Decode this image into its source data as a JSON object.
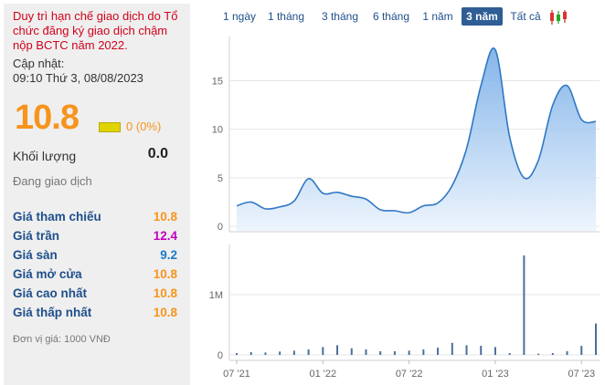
{
  "notice": "Duy trì hạn chế giao dịch do Tổ chức đăng ký giao dịch chậm nộp BCTC năm 2022.",
  "updated_label": "Cập nhật:",
  "updated_time": "09:10 Thứ 3, 08/08/2023",
  "price": "10.8",
  "change": "0 (0%)",
  "volume": {
    "label": "Khối lượng",
    "value": "0.0"
  },
  "status": "Đang giao dịch",
  "stats": [
    {
      "label": "Giá tham chiếu",
      "value": "10.8",
      "color": "#f7941d"
    },
    {
      "label": "Giá trần",
      "value": "12.4",
      "color": "#c000c0"
    },
    {
      "label": "Giá sàn",
      "value": "9.2",
      "color": "#1a7ac9"
    },
    {
      "label": "Giá mở cửa",
      "value": "10.8",
      "color": "#f7941d"
    },
    {
      "label": "Giá cao nhất",
      "value": "10.8",
      "color": "#f7941d"
    },
    {
      "label": "Giá thấp nhất",
      "value": "10.8",
      "color": "#f7941d"
    }
  ],
  "unit_note": "Đơn vị giá: 1000 VNĐ",
  "tabs": [
    {
      "label": "1 ngày",
      "active": false
    },
    {
      "label": "1 tháng",
      "active": false
    },
    {
      "label": "3 tháng",
      "active": false
    },
    {
      "label": "6 tháng",
      "active": false
    },
    {
      "label": "1 năm",
      "active": false
    },
    {
      "label": "3 năm",
      "active": true
    },
    {
      "label": "Tất cả",
      "active": false
    }
  ],
  "tab_icon": "candlestick-icon",
  "chart_data": [
    {
      "type": "area",
      "title": "",
      "y_ticks": [
        "0",
        "5",
        "10",
        "15"
      ],
      "ylim": [
        0,
        19
      ],
      "x_ticks": [
        "07 '21",
        "01 '22",
        "07 '22",
        "01 '23",
        "07 '23"
      ],
      "xlim": [
        "2021-07",
        "2023-08"
      ],
      "grid": true,
      "series": [
        {
          "x": [
            "2021-07",
            "2021-08",
            "2021-09",
            "2021-10",
            "2021-11",
            "2021-12",
            "2022-01",
            "2022-02",
            "2022-03",
            "2022-04",
            "2022-05",
            "2022-06",
            "2022-07",
            "2022-08",
            "2022-09",
            "2022-10",
            "2022-11",
            "2022-12",
            "2023-01",
            "2023-02",
            "2023-03",
            "2023-04",
            "2023-05",
            "2023-06",
            "2023-07",
            "2023-08"
          ],
          "y": [
            2.1,
            2.5,
            1.8,
            2.0,
            2.6,
            4.9,
            3.4,
            3.5,
            3.1,
            2.8,
            1.7,
            1.6,
            1.4,
            2.1,
            2.4,
            4.2,
            8.0,
            14.5,
            18.2,
            9.2,
            5.0,
            6.8,
            12.5,
            14.5,
            11.0,
            10.8
          ]
        }
      ]
    },
    {
      "type": "bar",
      "title": "",
      "y_ticks": [
        "0",
        "1M"
      ],
      "ylim": [
        0,
        1800000
      ],
      "series": [
        {
          "x": [
            "2021-07",
            "2021-08",
            "2021-09",
            "2021-10",
            "2021-11",
            "2021-12",
            "2022-01",
            "2022-02",
            "2022-03",
            "2022-04",
            "2022-05",
            "2022-06",
            "2022-07",
            "2022-08",
            "2022-09",
            "2022-10",
            "2022-11",
            "2022-12",
            "2023-01",
            "2023-02",
            "2023-03",
            "2023-04",
            "2023-05",
            "2023-06",
            "2023-07",
            "2023-08"
          ],
          "y": [
            30000,
            45000,
            40000,
            55000,
            70000,
            90000,
            130000,
            160000,
            110000,
            90000,
            60000,
            60000,
            70000,
            90000,
            120000,
            200000,
            160000,
            150000,
            130000,
            30000,
            1650000,
            20000,
            30000,
            60000,
            150000,
            520000
          ]
        }
      ]
    }
  ],
  "colors": {
    "area_fill_top": "#6fa8e6",
    "area_fill_bottom": "#eaf3fc",
    "line": "#2f78c4",
    "bar": "#4a6f9a",
    "grid": "#e6e6e6"
  }
}
